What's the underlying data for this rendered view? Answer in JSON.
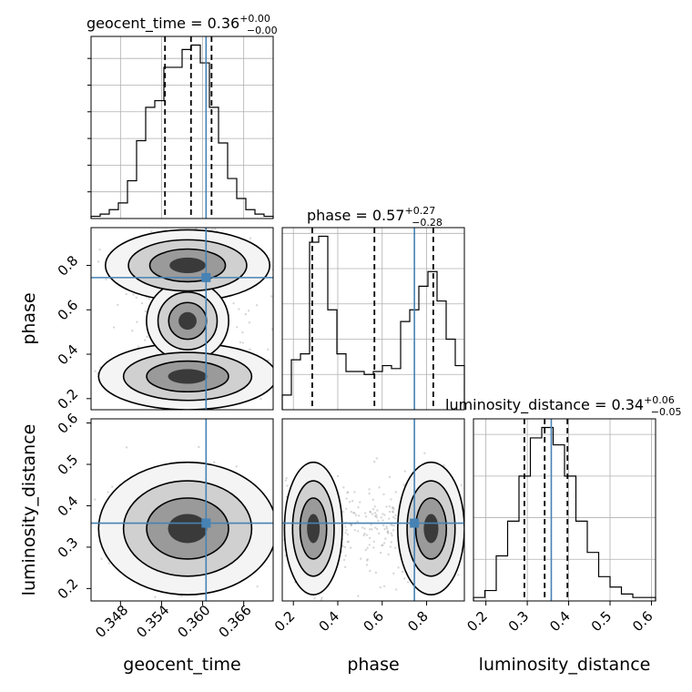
{
  "chart_data": {
    "type": "corner",
    "parameters": [
      "geocent_time",
      "phase",
      "luminosity_distance"
    ],
    "titles": {
      "geocent_time": {
        "name": "geocent_time",
        "median": "0.36",
        "plus": "+0.00",
        "minus": "−0.00"
      },
      "phase": {
        "name": "phase",
        "median": "0.57",
        "plus": "+0.27",
        "minus": "−0.28"
      },
      "luminosity_distance": {
        "name": "luminosity_distance",
        "median": "0.34",
        "plus": "+0.06",
        "minus": "−0.05"
      }
    },
    "axes": {
      "geocent_time": {
        "label": "geocent_time",
        "range": [
          0.3437,
          0.3703
        ],
        "ticks": [
          0.348,
          0.354,
          0.36,
          0.366
        ],
        "tick_labels": [
          "0.348",
          "0.354",
          "0.360",
          "0.366"
        ]
      },
      "phase": {
        "label": "phase",
        "range": [
          0.15,
          0.97
        ],
        "ticks": [
          0.2,
          0.4,
          0.6,
          0.8
        ],
        "tick_labels": [
          "0.2",
          "0.4",
          "0.6",
          "0.8"
        ]
      },
      "luminosity_distance": {
        "label": "luminosity_distance",
        "range": [
          0.17,
          0.61
        ],
        "ticks": [
          0.2,
          0.3,
          0.4,
          0.5,
          0.6
        ],
        "tick_labels": [
          "0.2",
          "0.3",
          "0.4",
          "0.5",
          "0.6"
        ]
      }
    },
    "truths": {
      "geocent_time": 0.3605,
      "phase": 0.745,
      "luminosity_distance": 0.358
    },
    "quantiles": {
      "geocent_time": [
        0.3545,
        0.3583,
        0.3613
      ],
      "phase": [
        0.285,
        0.565,
        0.83
      ],
      "luminosity_distance": [
        0.293,
        0.342,
        0.397
      ]
    },
    "histograms": {
      "geocent_time": [
        1,
        2,
        4,
        7,
        17,
        35,
        50,
        53,
        68,
        68,
        76,
        78,
        70,
        50,
        34,
        18,
        9,
        4,
        2,
        1
      ],
      "phase": [
        5,
        17,
        19,
        57,
        59,
        34,
        19,
        13,
        13,
        12,
        13,
        15,
        14,
        30,
        34,
        42,
        47,
        37,
        24,
        15
      ],
      "luminosity_distance": [
        1,
        3,
        13,
        23,
        36,
        47,
        50,
        45,
        36,
        23,
        14,
        7,
        4,
        2,
        1,
        1
      ]
    },
    "grid": true,
    "truth_color": "#4682b4"
  }
}
